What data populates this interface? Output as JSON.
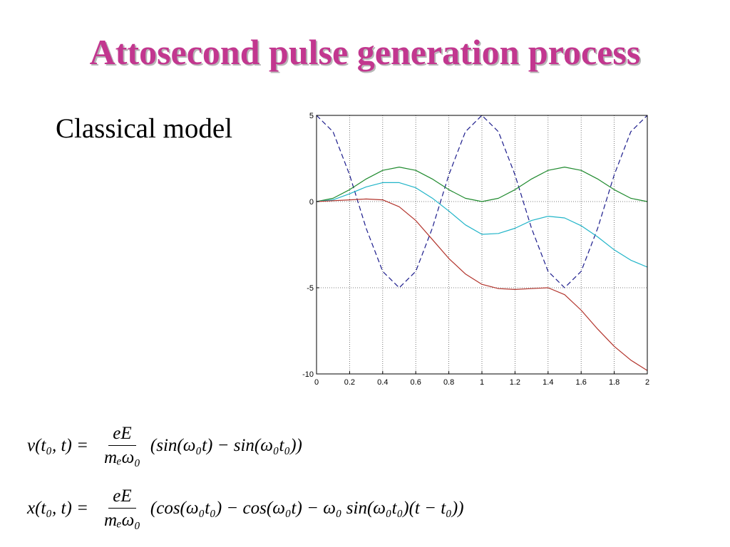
{
  "slide": {
    "title": "Attosecond pulse generation process",
    "title_color": "#c2378f",
    "subtitle": "Classical model"
  },
  "equations": {
    "velocity": {
      "lhs": "v(t₀, t) =",
      "numerator": "eE",
      "denominator": "mₑω₀",
      "rhs": "(sin(ω₀t) − sin(ω₀t₀))"
    },
    "position": {
      "lhs": "x(t₀, t) =",
      "numerator": "eE",
      "denominator": "mₑω₀",
      "rhs": "(cos(ω₀t₀) − cos(ω₀t) − ω₀ sin(ω₀t₀)(t − t₀))"
    }
  },
  "chart_data": {
    "type": "line",
    "title": "",
    "xlabel": "",
    "ylabel": "",
    "xlim": [
      0,
      2
    ],
    "ylim": [
      -10,
      5
    ],
    "xticks": [
      0,
      0.2,
      0.4,
      0.6,
      0.8,
      1,
      1.2,
      1.4,
      1.6,
      1.8,
      2
    ],
    "yticks": [
      -10,
      -5,
      0,
      5
    ],
    "grid": true,
    "legend": "none",
    "series": [
      {
        "color": "#1c1c8c",
        "dash": true,
        "x": [
          0,
          0.1,
          0.2,
          0.3,
          0.4,
          0.5,
          0.6,
          0.7,
          0.8,
          0.9,
          1.0,
          1.1,
          1.2,
          1.3,
          1.4,
          1.5,
          1.6,
          1.7,
          1.8,
          1.9,
          2.0
        ],
        "y": [
          5,
          4.05,
          1.55,
          -1.55,
          -4.05,
          -5,
          -4.05,
          -1.55,
          1.55,
          4.05,
          5,
          4.05,
          1.55,
          -1.55,
          -4.05,
          -5,
          -4.05,
          -1.55,
          1.55,
          4.05,
          5
        ]
      },
      {
        "color": "#1f8a2e",
        "dash": false,
        "x": [
          0,
          0.1,
          0.2,
          0.3,
          0.4,
          0.5,
          0.6,
          0.7,
          0.8,
          0.9,
          1.0,
          1.1,
          1.2,
          1.3,
          1.4,
          1.5,
          1.6,
          1.7,
          1.8,
          1.9,
          2.0
        ],
        "y": [
          0,
          0.19,
          0.69,
          1.31,
          1.81,
          2.0,
          1.81,
          1.31,
          0.69,
          0.19,
          0,
          0.19,
          0.69,
          1.31,
          1.81,
          2.0,
          1.81,
          1.31,
          0.69,
          0.19,
          0
        ]
      },
      {
        "color": "#20b4c8",
        "dash": false,
        "x": [
          0,
          0.1,
          0.2,
          0.3,
          0.4,
          0.5,
          0.6,
          0.7,
          0.8,
          0.9,
          1.0,
          1.1,
          1.2,
          1.3,
          1.4,
          1.5,
          1.6,
          1.7,
          1.8,
          1.9,
          2.0
        ],
        "y": [
          0,
          0.1,
          0.45,
          0.85,
          1.1,
          1.1,
          0.8,
          0.2,
          -0.55,
          -1.35,
          -1.9,
          -1.85,
          -1.55,
          -1.1,
          -0.85,
          -0.95,
          -1.4,
          -2.05,
          -2.8,
          -3.4,
          -3.8
        ]
      },
      {
        "color": "#b2332b",
        "dash": false,
        "x": [
          0,
          0.1,
          0.2,
          0.3,
          0.4,
          0.5,
          0.6,
          0.7,
          0.8,
          0.9,
          1.0,
          1.1,
          1.2,
          1.3,
          1.4,
          1.5,
          1.6,
          1.7,
          1.8,
          1.9,
          2.0
        ],
        "y": [
          0,
          0.05,
          0.1,
          0.15,
          0.1,
          -0.3,
          -1.1,
          -2.2,
          -3.3,
          -4.2,
          -4.8,
          -5.05,
          -5.1,
          -5.05,
          -5.0,
          -5.4,
          -6.3,
          -7.4,
          -8.4,
          -9.2,
          -9.8
        ]
      }
    ]
  }
}
